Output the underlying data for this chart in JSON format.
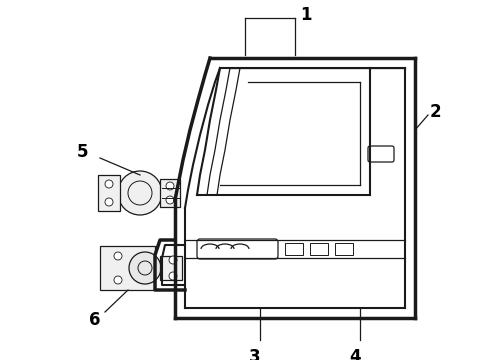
{
  "background_color": "#ffffff",
  "line_color": "#1a1a1a",
  "label_color": "#000000",
  "label_fontsize": 12,
  "figsize": [
    4.9,
    3.6
  ],
  "dpi": 100
}
